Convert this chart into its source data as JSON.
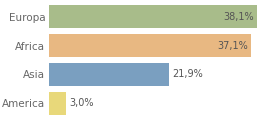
{
  "categories": [
    "Europa",
    "Africa",
    "Asia",
    "America"
  ],
  "values": [
    38.1,
    37.1,
    21.9,
    3.0
  ],
  "labels": [
    "38,1%",
    "37,1%",
    "21,9%",
    "3,0%"
  ],
  "bar_colors": [
    "#a8bc8a",
    "#e8b882",
    "#7a9fc0",
    "#e8d87a"
  ],
  "background_color": "#ffffff",
  "xlim": [
    0,
    42
  ],
  "bar_height": 0.78,
  "label_inside": [
    true,
    true,
    false,
    false
  ],
  "figsize": [
    2.8,
    1.2
  ],
  "dpi": 100,
  "label_fontsize": 7.0,
  "tick_fontsize": 7.5,
  "tick_color": "#666666"
}
